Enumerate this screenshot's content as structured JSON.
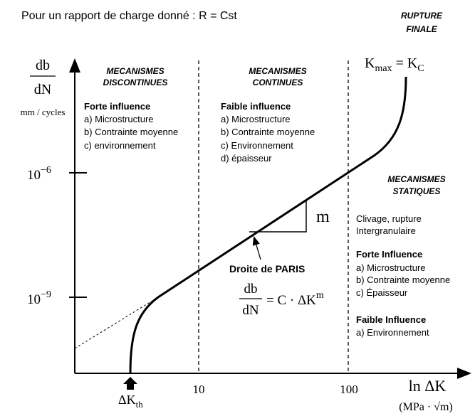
{
  "header": {
    "title": "Pour un rapport de charge donné : R = Cst"
  },
  "final_rupture": {
    "heading": [
      "RUPTURE",
      "FINALE"
    ],
    "condition": {
      "k": "K",
      "max": "max",
      "eq": " = K",
      "c": "C"
    }
  },
  "y_axis": {
    "numerator": "db",
    "denominator": "dN",
    "unit": "mm / cycles",
    "ticks": [
      {
        "base": "10",
        "exponent": "−6"
      },
      {
        "base": "10",
        "exponent": "−9"
      }
    ]
  },
  "x_axis": {
    "label": "ln ΔK",
    "unit": "(MPa · √m)",
    "ticks": [
      "10",
      "100"
    ],
    "threshold": {
      "symbol": "ΔK",
      "sub": "th"
    }
  },
  "zones": [
    {
      "heading": [
        "MECANISMES",
        "DISCONTINUES"
      ],
      "influence": "Forte influence",
      "items": [
        "a) Microstructure",
        "b) Contrainte moyenne",
        "c) environnement"
      ]
    },
    {
      "heading": [
        "MECANISMES",
        "CONTINUES"
      ],
      "influence": "Faible influence",
      "items": [
        "a) Microstructure",
        "b) Contrainte moyenne",
        "c) Environnement",
        "d) épaisseur"
      ]
    },
    {
      "heading": [
        "MECANISMES",
        "STATIQUES"
      ],
      "notes": [
        "Clivage, rupture",
        "Intergranulaire"
      ],
      "strong": {
        "influence": "Forte Influence",
        "items": [
          "a) Microstructure",
          "b) Contrainte moyenne",
          "c) Épaisseur"
        ]
      },
      "weak": {
        "influence": "Faible Influence",
        "items": [
          "a) Environnement"
        ]
      }
    }
  ],
  "paris": {
    "label": "Droite de PARIS",
    "numerator": "db",
    "denominator": "dN",
    "rhs": "= C · ΔK",
    "exponent": "m",
    "slope": "m"
  }
}
